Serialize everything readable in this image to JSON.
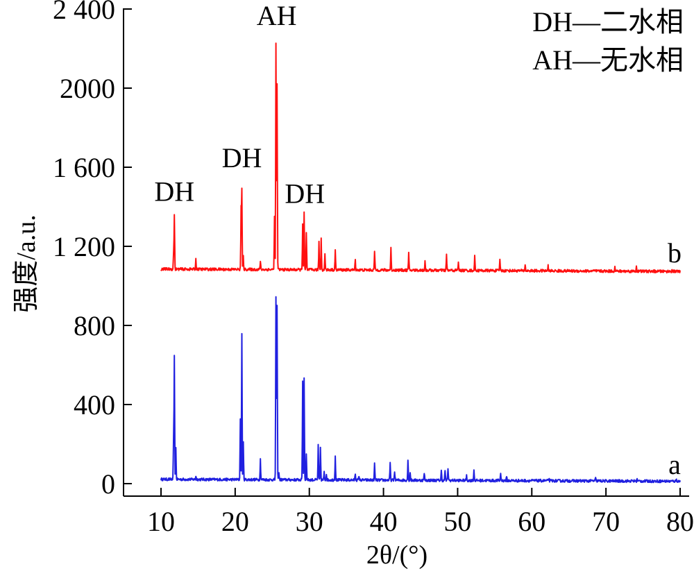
{
  "chart_data": {
    "type": "line",
    "title": "",
    "xlabel": "2θ/(°)",
    "ylabel": "强度/a.u.",
    "xlim": [
      5,
      80
    ],
    "ylim": [
      -60,
      2400
    ],
    "x_ticks": [
      10,
      20,
      30,
      40,
      50,
      60,
      70,
      80
    ],
    "x_tick_labels": [
      "10",
      "20",
      "30",
      "40",
      "50",
      "60",
      "70",
      "80"
    ],
    "y_ticks": [
      0,
      400,
      800,
      1200,
      1600,
      2000,
      2400
    ],
    "y_tick_labels": [
      "0",
      "400",
      "800",
      "1 200",
      "1 600",
      "2000",
      "2 400"
    ],
    "legend": [
      "DH—二水相",
      "AH—无水相"
    ],
    "legend_position": "top-right",
    "grid": false,
    "baseline": {
      "a": 22,
      "b": 1085
    },
    "series": [
      {
        "name": "a",
        "color": "#2020e0",
        "x_range": [
          10,
          80
        ],
        "peaks": [
          {
            "x": 11.7,
            "y": 230
          },
          {
            "x": 11.8,
            "y": 635
          },
          {
            "x": 12.0,
            "y": 180
          },
          {
            "x": 14.7,
            "y": 40
          },
          {
            "x": 20.7,
            "y": 335
          },
          {
            "x": 20.9,
            "y": 760
          },
          {
            "x": 21.1,
            "y": 210
          },
          {
            "x": 23.4,
            "y": 125
          },
          {
            "x": 25.5,
            "y": 940
          },
          {
            "x": 25.65,
            "y": 900
          },
          {
            "x": 25.9,
            "y": 60
          },
          {
            "x": 29.1,
            "y": 520
          },
          {
            "x": 29.3,
            "y": 540
          },
          {
            "x": 29.6,
            "y": 150
          },
          {
            "x": 31.2,
            "y": 195
          },
          {
            "x": 31.5,
            "y": 180
          },
          {
            "x": 32.0,
            "y": 60
          },
          {
            "x": 32.3,
            "y": 55
          },
          {
            "x": 33.5,
            "y": 145
          },
          {
            "x": 36.2,
            "y": 55
          },
          {
            "x": 36.7,
            "y": 45
          },
          {
            "x": 38.8,
            "y": 105
          },
          {
            "x": 40.9,
            "y": 110
          },
          {
            "x": 41.5,
            "y": 70
          },
          {
            "x": 43.3,
            "y": 125
          },
          {
            "x": 43.6,
            "y": 60
          },
          {
            "x": 45.5,
            "y": 60
          },
          {
            "x": 47.8,
            "y": 70
          },
          {
            "x": 48.3,
            "y": 75
          },
          {
            "x": 48.7,
            "y": 85
          },
          {
            "x": 51.2,
            "y": 45
          },
          {
            "x": 52.2,
            "y": 75
          },
          {
            "x": 55.8,
            "y": 60
          },
          {
            "x": 56.6,
            "y": 40
          },
          {
            "x": 62.3,
            "y": 35
          },
          {
            "x": 68.6,
            "y": 35
          },
          {
            "x": 74.2,
            "y": 30
          },
          {
            "x": 79.5,
            "y": 30
          }
        ]
      },
      {
        "name": "b",
        "color": "#ff1010",
        "x_range": [
          10,
          80
        ],
        "peaks": [
          {
            "x": 11.7,
            "y": 1165
          },
          {
            "x": 11.8,
            "y": 1360
          },
          {
            "x": 14.7,
            "y": 1135
          },
          {
            "x": 20.8,
            "y": 1395
          },
          {
            "x": 20.9,
            "y": 1490
          },
          {
            "x": 21.1,
            "y": 1150
          },
          {
            "x": 23.4,
            "y": 1130
          },
          {
            "x": 25.5,
            "y": 2230
          },
          {
            "x": 25.65,
            "y": 2020
          },
          {
            "x": 25.3,
            "y": 1350
          },
          {
            "x": 29.1,
            "y": 1320
          },
          {
            "x": 29.3,
            "y": 1370
          },
          {
            "x": 29.6,
            "y": 1270
          },
          {
            "x": 31.3,
            "y": 1225
          },
          {
            "x": 31.6,
            "y": 1245
          },
          {
            "x": 32.1,
            "y": 1170
          },
          {
            "x": 33.5,
            "y": 1185
          },
          {
            "x": 36.2,
            "y": 1135
          },
          {
            "x": 38.8,
            "y": 1180
          },
          {
            "x": 41.0,
            "y": 1195
          },
          {
            "x": 43.4,
            "y": 1170
          },
          {
            "x": 45.6,
            "y": 1135
          },
          {
            "x": 48.5,
            "y": 1165
          },
          {
            "x": 50.1,
            "y": 1130
          },
          {
            "x": 52.3,
            "y": 1160
          },
          {
            "x": 55.7,
            "y": 1145
          },
          {
            "x": 59.1,
            "y": 1115
          },
          {
            "x": 62.2,
            "y": 1110
          },
          {
            "x": 71.2,
            "y": 1105
          },
          {
            "x": 74.1,
            "y": 1110
          },
          {
            "x": 78.9,
            "y": 1095
          }
        ]
      }
    ],
    "annotations": [
      {
        "text": "DH",
        "x": 11.8,
        "y": 1430
      },
      {
        "text": "DH",
        "x": 20.9,
        "y": 1600
      },
      {
        "text": "AH",
        "x": 25.6,
        "y": 2320
      },
      {
        "text": "DH",
        "x": 29.4,
        "y": 1420
      }
    ]
  }
}
